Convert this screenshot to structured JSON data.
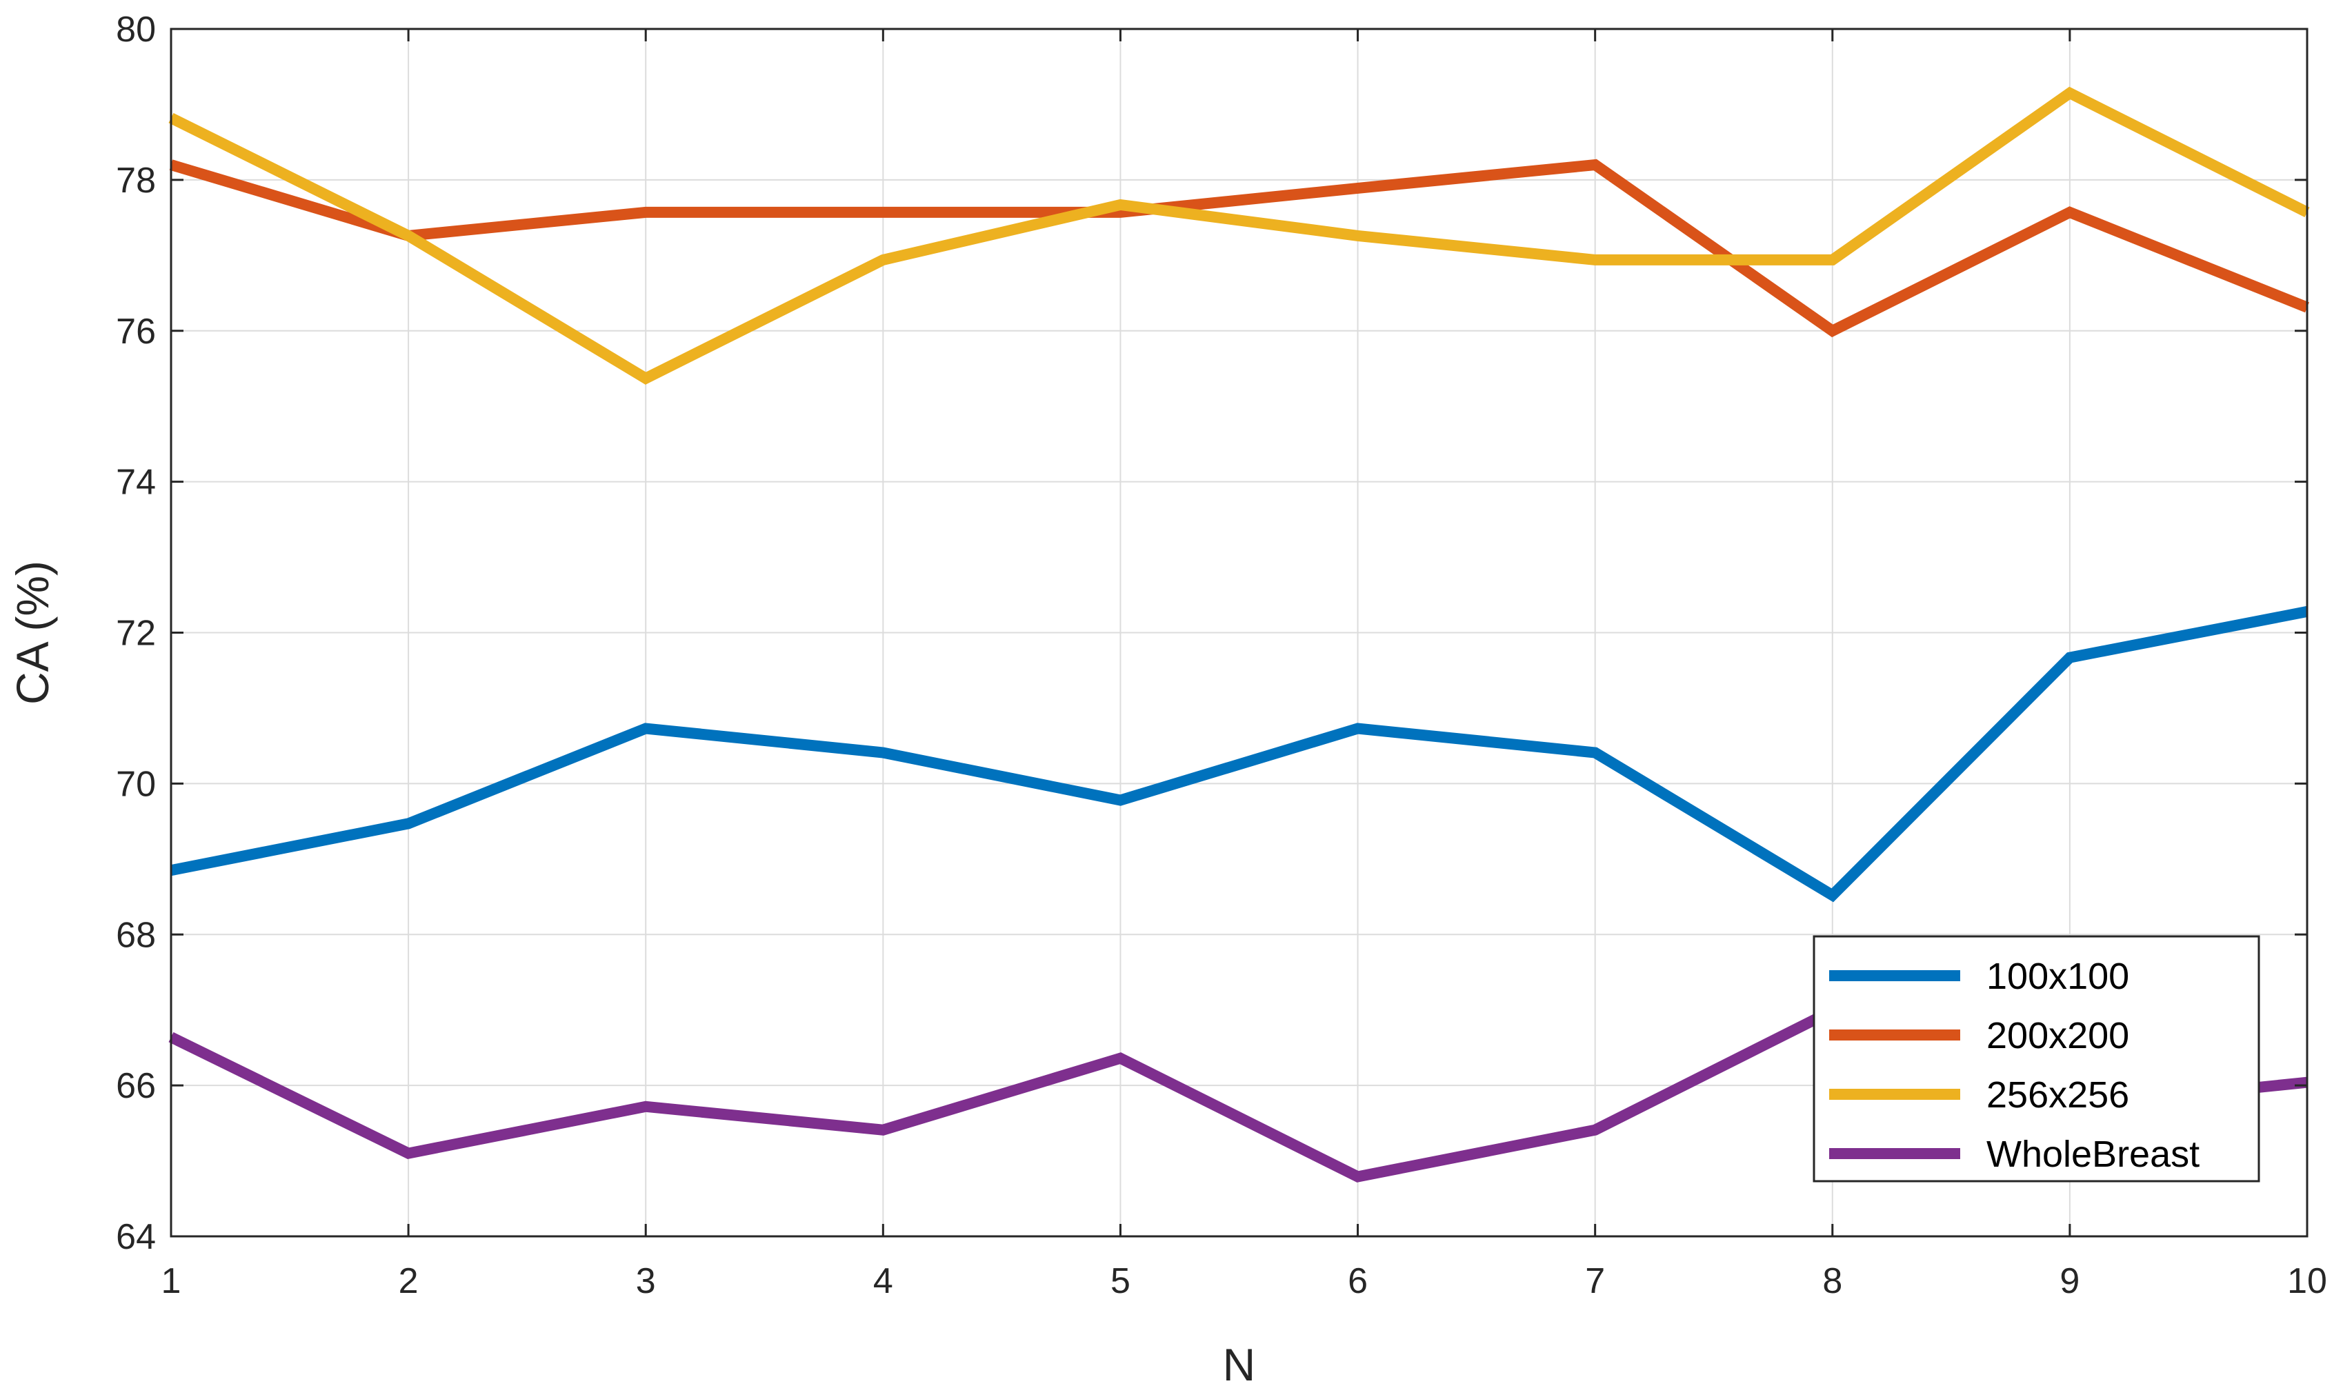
{
  "chart_data": {
    "type": "line",
    "title": "",
    "xlabel": "N",
    "ylabel": "CA (%)",
    "xlim": [
      1,
      10
    ],
    "ylim": [
      64,
      80
    ],
    "xticks": [
      1,
      2,
      3,
      4,
      5,
      6,
      7,
      8,
      9,
      10
    ],
    "yticks": [
      64,
      66,
      68,
      70,
      72,
      74,
      76,
      78,
      80
    ],
    "grid": true,
    "legend_position": "bottom-right",
    "x": [
      1,
      2,
      3,
      4,
      5,
      6,
      7,
      8,
      9,
      10
    ],
    "series": [
      {
        "name": "100x100",
        "color": "#0072BD",
        "values": [
          68.85,
          69.47,
          70.73,
          70.41,
          69.78,
          70.73,
          70.41,
          68.52,
          71.67,
          72.28
        ]
      },
      {
        "name": "200x200",
        "color": "#D95319",
        "values": [
          78.2,
          77.26,
          77.57,
          77.57,
          77.57,
          77.89,
          78.2,
          76.0,
          77.57,
          76.31
        ]
      },
      {
        "name": "256x256",
        "color": "#EDB120",
        "values": [
          78.82,
          77.26,
          75.37,
          76.94,
          77.67,
          77.26,
          76.94,
          76.94,
          79.15,
          77.57
        ]
      },
      {
        "name": "WholeBreast",
        "color": "#7E2F8E",
        "values": [
          66.64,
          65.1,
          65.72,
          65.41,
          66.36,
          64.79,
          65.41,
          66.99,
          65.72,
          66.04
        ]
      }
    ]
  }
}
